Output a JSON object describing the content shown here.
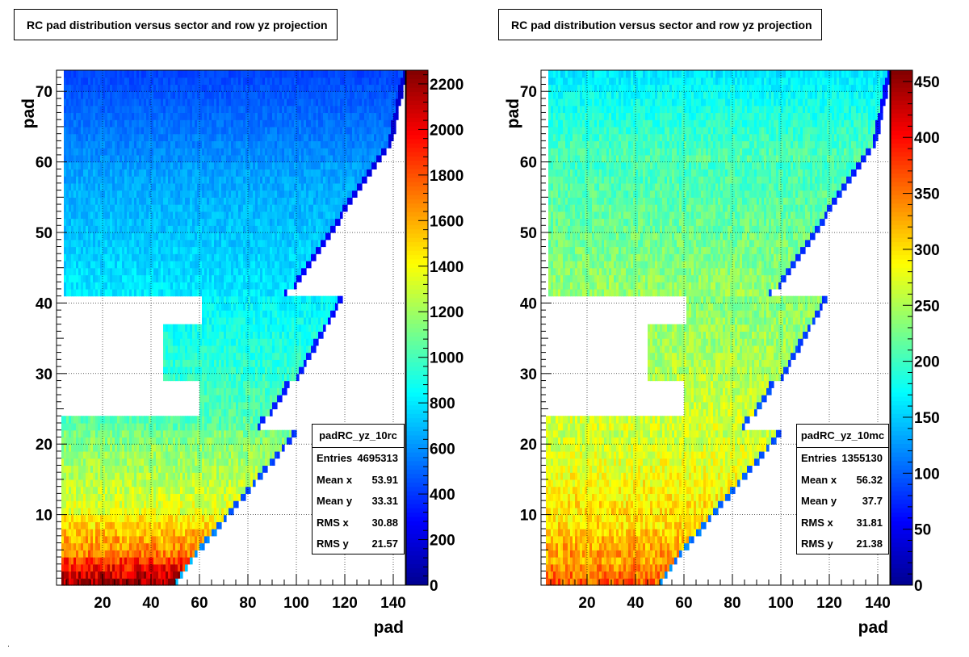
{
  "panels": [
    {
      "title": "RC pad distribution versus sector and row yz projection",
      "xlabel": "pad",
      "ylabel": "pad",
      "stats": {
        "name": "padRC_yz_10rc",
        "rows": [
          {
            "label": "Entries",
            "value": "4695313"
          },
          {
            "label": "Mean x",
            "value": "53.91"
          },
          {
            "label": "Mean y",
            "value": "33.31"
          },
          {
            "label": "RMS x",
            "value": "30.88"
          },
          {
            "label": "RMS y",
            "value": "21.57"
          }
        ]
      }
    },
    {
      "title": "RC pad distribution versus sector and row yz projection",
      "xlabel": "pad",
      "ylabel": "pad",
      "stats": {
        "name": "padRC_yz_10mc",
        "rows": [
          {
            "label": "Entries",
            "value": "1355130"
          },
          {
            "label": "Mean x",
            "value": "56.32"
          },
          {
            "label": "Mean y",
            "value": "37.7"
          },
          {
            "label": "RMS x",
            "value": "31.81"
          },
          {
            "label": "RMS y",
            "value": "21.38"
          }
        ]
      }
    }
  ],
  "chart_data": [
    {
      "type": "heatmap",
      "title": "RC pad distribution versus sector and row yz projection",
      "xlabel": "pad",
      "ylabel": "pad",
      "xlim": [
        1,
        145
      ],
      "ylim": [
        0,
        73
      ],
      "xticks": [
        "20",
        "40",
        "60",
        "80",
        "100",
        "120",
        "140"
      ],
      "yticks": [
        "10",
        "20",
        "30",
        "40",
        "50",
        "60",
        "70"
      ],
      "zlim": [
        0,
        2260
      ],
      "zticks": [
        "0",
        "200",
        "400",
        "600",
        "800",
        "1000",
        "1200",
        "1400",
        "1600",
        "1800",
        "2000",
        "2200"
      ],
      "colormap": [
        "#00008f",
        "#0000ff",
        "#0080ff",
        "#00ffff",
        "#80ff80",
        "#ffff00",
        "#ff8000",
        "#ff0000",
        "#800000"
      ],
      "grid": true,
      "regions": [
        {
          "rows": [
            0,
            4
          ],
          "value_low": 2200,
          "value_high": 1750
        },
        {
          "rows": [
            4,
            10
          ],
          "value_low": 1700,
          "value_high": 1400
        },
        {
          "rows": [
            10,
            22
          ],
          "value_low": 1350,
          "value_high": 1100
        },
        {
          "rows": [
            22,
            41
          ],
          "value_low": 1050,
          "value_high": 820
        },
        {
          "rows": [
            41,
            60
          ],
          "value_low": 800,
          "value_high": 620
        },
        {
          "rows": [
            60,
            73
          ],
          "value_low": 600,
          "value_high": 420
        }
      ]
    },
    {
      "type": "heatmap",
      "title": "RC pad distribution versus sector and row yz projection",
      "xlabel": "pad",
      "ylabel": "pad",
      "xlim": [
        1,
        145
      ],
      "ylim": [
        0,
        73
      ],
      "xticks": [
        "20",
        "40",
        "60",
        "80",
        "100",
        "120",
        "140"
      ],
      "yticks": [
        "10",
        "20",
        "30",
        "40",
        "50",
        "60",
        "70"
      ],
      "zlim": [
        0,
        460
      ],
      "zticks": [
        "0",
        "50",
        "100",
        "150",
        "200",
        "250",
        "300",
        "350",
        "400",
        "450"
      ],
      "colormap": [
        "#00008f",
        "#0000ff",
        "#0080ff",
        "#00ffff",
        "#80ff80",
        "#ffff00",
        "#ff8000",
        "#ff0000",
        "#800000"
      ],
      "grid": true,
      "regions": [
        {
          "rows": [
            0,
            4
          ],
          "value_low": 360,
          "value_high": 320
        },
        {
          "rows": [
            4,
            10
          ],
          "value_low": 330,
          "value_high": 290
        },
        {
          "rows": [
            10,
            22
          ],
          "value_low": 300,
          "value_high": 260
        },
        {
          "rows": [
            22,
            41
          ],
          "value_low": 270,
          "value_high": 230
        },
        {
          "rows": [
            41,
            60
          ],
          "value_low": 240,
          "value_high": 200
        },
        {
          "rows": [
            60,
            73
          ],
          "value_low": 210,
          "value_high": 160
        }
      ]
    }
  ]
}
